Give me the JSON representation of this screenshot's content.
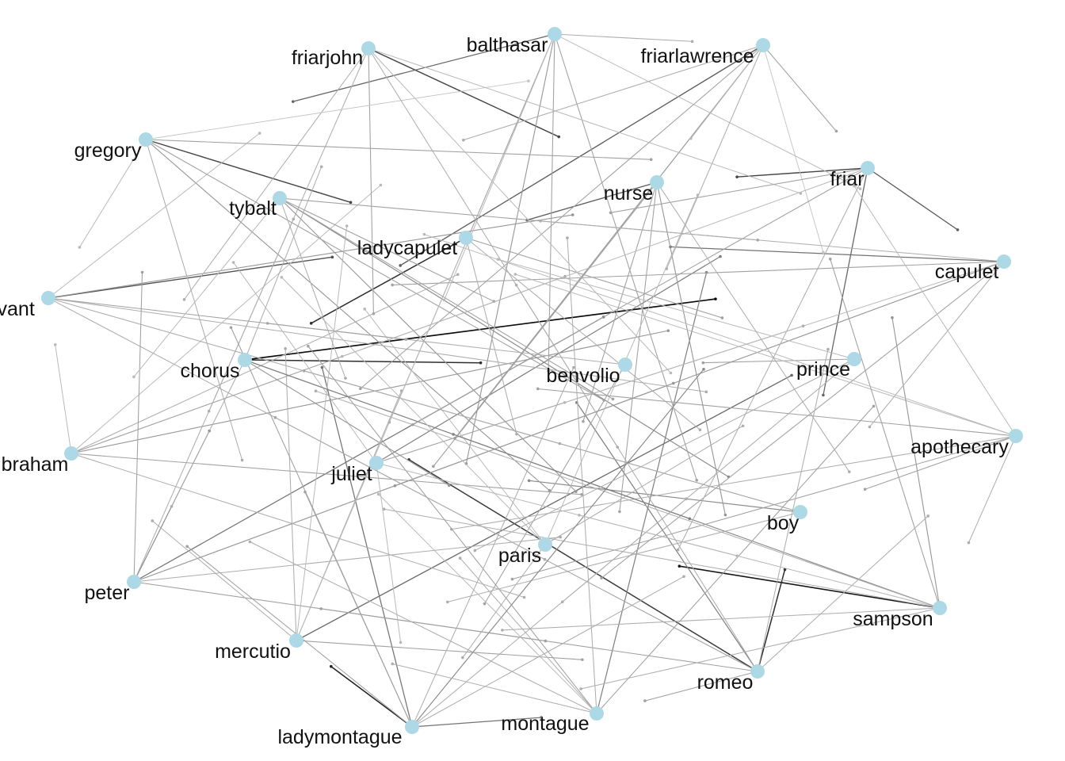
{
  "diagram": {
    "type": "network-graph",
    "directed": true,
    "node_color": "#add8e6",
    "label_color": "#111111",
    "edge_base_color": "#000000",
    "nodes": [
      {
        "id": "balthasar",
        "label": "balthasar"
      },
      {
        "id": "friarjohn",
        "label": "friarjohn"
      },
      {
        "id": "friarlawrence",
        "label": "friarlawrence"
      },
      {
        "id": "gregory",
        "label": "gregory"
      },
      {
        "id": "friar",
        "label": "friar"
      },
      {
        "id": "nurse",
        "label": "nurse"
      },
      {
        "id": "tybalt",
        "label": "tybalt"
      },
      {
        "id": "ladycapulet",
        "label": "ladycapulet"
      },
      {
        "id": "capulet",
        "label": "capulet"
      },
      {
        "id": "servant",
        "label": "rvant"
      },
      {
        "id": "chorus",
        "label": "chorus"
      },
      {
        "id": "benvolio",
        "label": "benvolio"
      },
      {
        "id": "prince",
        "label": "prince"
      },
      {
        "id": "apothecary",
        "label": "apothecary"
      },
      {
        "id": "abraham",
        "label": "braham"
      },
      {
        "id": "juliet",
        "label": "juliet"
      },
      {
        "id": "boy",
        "label": "boy"
      },
      {
        "id": "paris",
        "label": "paris"
      },
      {
        "id": "peter",
        "label": "peter"
      },
      {
        "id": "sampson",
        "label": "sampson"
      },
      {
        "id": "mercutio",
        "label": "mercutio"
      },
      {
        "id": "romeo",
        "label": "romeo"
      },
      {
        "id": "montague",
        "label": "montague"
      },
      {
        "id": "ladymontague",
        "label": "ladymontague"
      }
    ],
    "edges": [
      {
        "from": "chorus",
        "to": "capulet",
        "weight": 0.95
      },
      {
        "from": "sampson",
        "to": "paris",
        "weight": 0.9
      },
      {
        "from": "ladymontague",
        "to": "mercutio",
        "weight": 0.85
      },
      {
        "from": "romeo",
        "to": "boy",
        "weight": 0.8
      },
      {
        "from": "romeo",
        "to": "chorus",
        "weight": 0.75
      },
      {
        "from": "chorus",
        "to": "benvolio",
        "weight": 0.8
      },
      {
        "from": "friarjohn",
        "to": "nurse",
        "weight": 0.7
      },
      {
        "from": "ladycapulet",
        "to": "chorus",
        "weight": 0.8
      },
      {
        "from": "gregory",
        "to": "ladycapulet",
        "weight": 0.7
      },
      {
        "from": "servant",
        "to": "ladycapulet",
        "weight": 0.65
      },
      {
        "from": "friar",
        "to": "nurse",
        "weight": 0.7
      },
      {
        "from": "friar",
        "to": "capulet",
        "weight": 0.6
      },
      {
        "from": "friarlawrence",
        "to": "chorus",
        "weight": 0.6
      },
      {
        "from": "balthasar",
        "to": "gregory",
        "weight": 0.55
      },
      {
        "from": "nurse",
        "to": "ladycapulet",
        "weight": 0.6
      },
      {
        "from": "capulet",
        "to": "ladycapulet",
        "weight": 0.5
      },
      {
        "from": "friar",
        "to": "boy",
        "weight": 0.55
      },
      {
        "from": "mercutio",
        "to": "capulet",
        "weight": 0.55
      },
      {
        "from": "peter",
        "to": "friar",
        "weight": 0.5
      },
      {
        "from": "ladymontague",
        "to": "tybalt",
        "weight": 0.5
      },
      {
        "from": "romeo",
        "to": "ladycapulet",
        "weight": 0.45
      },
      {
        "from": "montague",
        "to": "friarlawrence",
        "weight": 0.45
      },
      {
        "from": "juliet",
        "to": "friar",
        "weight": 0.45
      },
      {
        "from": "abraham",
        "to": "capulet",
        "weight": 0.35
      },
      {
        "from": "peter",
        "to": "chorus",
        "weight": 0.4
      },
      {
        "from": "apothecary",
        "to": "chorus",
        "weight": 0.3
      },
      {
        "from": "prince",
        "to": "benvolio",
        "weight": 0.3
      },
      {
        "from": "sampson",
        "to": "chorus",
        "weight": 0.4
      },
      {
        "from": "boy",
        "to": "juliet",
        "weight": 0.4
      },
      {
        "from": "tybalt",
        "to": "sampson",
        "weight": 0.4
      },
      {
        "from": "tybalt",
        "to": "romeo",
        "weight": 0.35
      },
      {
        "from": "gregory",
        "to": "romeo",
        "weight": 0.35
      },
      {
        "from": "gregory",
        "to": "boy",
        "weight": 0.3
      },
      {
        "from": "servant",
        "to": "friar",
        "weight": 0.35
      },
      {
        "from": "servant",
        "to": "apothecary",
        "weight": 0.25
      },
      {
        "from": "balthasar",
        "to": "ladymontague",
        "weight": 0.35
      },
      {
        "from": "balthasar",
        "to": "paris",
        "weight": 0.3
      },
      {
        "from": "balthasar",
        "to": "romeo",
        "weight": 0.3
      },
      {
        "from": "friarjohn",
        "to": "juliet",
        "weight": 0.3
      },
      {
        "from": "friarjohn",
        "to": "peter",
        "weight": 0.25
      },
      {
        "from": "friarjohn",
        "to": "abraham",
        "weight": 0.25
      },
      {
        "from": "friarlawrence",
        "to": "mercutio",
        "weight": 0.35
      },
      {
        "from": "friarlawrence",
        "to": "friar",
        "weight": 0.3
      },
      {
        "from": "friarlawrence",
        "to": "peter",
        "weight": 0.3
      },
      {
        "from": "nurse",
        "to": "romeo",
        "weight": 0.35
      },
      {
        "from": "nurse",
        "to": "montague",
        "weight": 0.3
      },
      {
        "from": "nurse",
        "to": "paris",
        "weight": 0.3
      },
      {
        "from": "capulet",
        "to": "peter",
        "weight": 0.35
      },
      {
        "from": "capulet",
        "to": "servant",
        "weight": 0.3
      },
      {
        "from": "capulet",
        "to": "ladymontague",
        "weight": 0.3
      },
      {
        "from": "benvolio",
        "to": "servant",
        "weight": 0.25
      },
      {
        "from": "benvolio",
        "to": "ladymontague",
        "weight": 0.3
      },
      {
        "from": "apothecary",
        "to": "mercutio",
        "weight": 0.3
      },
      {
        "from": "apothecary",
        "to": "peter",
        "weight": 0.25
      },
      {
        "from": "apothecary",
        "to": "tybalt",
        "weight": 0.2
      },
      {
        "from": "abraham",
        "to": "friar",
        "weight": 0.3
      },
      {
        "from": "abraham",
        "to": "nurse",
        "weight": 0.25
      },
      {
        "from": "abraham",
        "to": "boy",
        "weight": 0.3
      },
      {
        "from": "abraham",
        "to": "balthasar",
        "weight": 0.2
      },
      {
        "from": "juliet",
        "to": "capulet",
        "weight": 0.3
      },
      {
        "from": "juliet",
        "to": "gregory",
        "weight": 0.2
      },
      {
        "from": "boy",
        "to": "servant",
        "weight": 0.3
      },
      {
        "from": "boy",
        "to": "mercutio",
        "weight": 0.25
      },
      {
        "from": "paris",
        "to": "prince",
        "weight": 0.25
      },
      {
        "from": "paris",
        "to": "tybalt",
        "weight": 0.2
      },
      {
        "from": "peter",
        "to": "capulet",
        "weight": 0.35
      },
      {
        "from": "peter",
        "to": "romeo",
        "weight": 0.3
      },
      {
        "from": "peter",
        "to": "gregory",
        "weight": 0.3
      },
      {
        "from": "peter",
        "to": "boy",
        "weight": 0.25
      },
      {
        "from": "peter",
        "to": "friarjohn",
        "weight": 0.25
      },
      {
        "from": "sampson",
        "to": "friarlawrence",
        "weight": 0.3
      },
      {
        "from": "sampson",
        "to": "friar",
        "weight": 0.35
      },
      {
        "from": "sampson",
        "to": "servant",
        "weight": 0.25
      },
      {
        "from": "sampson",
        "to": "abraham",
        "weight": 0.25
      },
      {
        "from": "sampson",
        "to": "mercutio",
        "weight": 0.25
      },
      {
        "from": "mercutio",
        "to": "romeo",
        "weight": 0.3
      },
      {
        "from": "mercutio",
        "to": "tybalt",
        "weight": 0.25
      },
      {
        "from": "mercutio",
        "to": "friarjohn",
        "weight": 0.2
      },
      {
        "from": "mercutio",
        "to": "abraham",
        "weight": 0.25
      },
      {
        "from": "romeo",
        "to": "servant",
        "weight": 0.3
      },
      {
        "from": "romeo",
        "to": "friarjohn",
        "weight": 0.25
      },
      {
        "from": "romeo",
        "to": "apothecary",
        "weight": 0.25
      },
      {
        "from": "romeo",
        "to": "peter",
        "weight": 0.3
      },
      {
        "from": "montague",
        "to": "gregory",
        "weight": 0.3
      },
      {
        "from": "montague",
        "to": "capulet",
        "weight": 0.3
      },
      {
        "from": "montague",
        "to": "juliet",
        "weight": 0.25
      },
      {
        "from": "montague",
        "to": "abraham",
        "weight": 0.25
      },
      {
        "from": "montague",
        "to": "balthasar",
        "weight": 0.25
      },
      {
        "from": "ladymontague",
        "to": "friar",
        "weight": 0.4
      },
      {
        "from": "ladymontague",
        "to": "gregory",
        "weight": 0.3
      },
      {
        "from": "ladymontague",
        "to": "prince",
        "weight": 0.25
      },
      {
        "from": "ladymontague",
        "to": "abraham",
        "weight": 0.3
      },
      {
        "from": "ladymontague",
        "to": "montague",
        "weight": 0.5
      },
      {
        "from": "ladymontague",
        "to": "chorus",
        "weight": 0.3
      },
      {
        "from": "servant",
        "to": "boy",
        "weight": 0.25
      },
      {
        "from": "servant",
        "to": "benvolio",
        "weight": 0.3
      },
      {
        "from": "servant",
        "to": "friarjohn",
        "weight": 0.2
      },
      {
        "from": "servant",
        "to": "romeo",
        "weight": 0.25
      },
      {
        "from": "chorus",
        "to": "sampson",
        "weight": 0.45
      },
      {
        "from": "chorus",
        "to": "paris",
        "weight": 0.35
      },
      {
        "from": "chorus",
        "to": "friarjohn",
        "weight": 0.25
      },
      {
        "from": "chorus",
        "to": "peter",
        "weight": 0.25
      },
      {
        "from": "gregory",
        "to": "friar",
        "weight": 0.3
      },
      {
        "from": "gregory",
        "to": "mercutio",
        "weight": 0.25
      },
      {
        "from": "gregory",
        "to": "servant",
        "weight": 0.2
      },
      {
        "from": "gregory",
        "to": "friarlawrence",
        "weight": 0.15
      },
      {
        "from": "tybalt",
        "to": "capulet",
        "weight": 0.3
      },
      {
        "from": "tybalt",
        "to": "abraham",
        "weight": 0.2
      },
      {
        "from": "tybalt",
        "to": "boy",
        "weight": 0.3
      },
      {
        "from": "tybalt",
        "to": "juliet",
        "weight": 0.25
      },
      {
        "from": "tybalt",
        "to": "benvolio",
        "weight": 0.3
      },
      {
        "from": "ladycapulet",
        "to": "prince",
        "weight": 0.3
      },
      {
        "from": "ladycapulet",
        "to": "boy",
        "weight": 0.25
      },
      {
        "from": "ladycapulet",
        "to": "paris",
        "weight": 0.25
      },
      {
        "from": "friarlawrence",
        "to": "nurse",
        "weight": 0.2
      },
      {
        "from": "friarlawrence",
        "to": "tybalt",
        "weight": 0.25
      },
      {
        "from": "friarlawrence",
        "to": "prince",
        "weight": 0.15
      },
      {
        "from": "friarlawrence",
        "to": "benvolio",
        "weight": 0.25
      },
      {
        "from": "balthasar",
        "to": "mercutio",
        "weight": 0.3
      },
      {
        "from": "balthasar",
        "to": "capulet",
        "weight": 0.2
      },
      {
        "from": "balthasar",
        "to": "juliet",
        "weight": 0.2
      },
      {
        "from": "balthasar",
        "to": "friarlawrence",
        "weight": 0.25
      },
      {
        "from": "friarjohn",
        "to": "boy",
        "weight": 0.2
      },
      {
        "from": "friarjohn",
        "to": "romeo",
        "weight": 0.25
      },
      {
        "from": "friarjohn",
        "to": "capulet",
        "weight": 0.2
      },
      {
        "from": "friar",
        "to": "peter",
        "weight": 0.3
      },
      {
        "from": "friar",
        "to": "abraham",
        "weight": 0.2
      },
      {
        "from": "friar",
        "to": "montague",
        "weight": 0.25
      },
      {
        "from": "friar",
        "to": "ladycapulet",
        "weight": 0.3
      },
      {
        "from": "nurse",
        "to": "sampson",
        "weight": 0.25
      },
      {
        "from": "nurse",
        "to": "mercutio",
        "weight": 0.3
      },
      {
        "from": "capulet",
        "to": "boy",
        "weight": 0.25
      },
      {
        "from": "capulet",
        "to": "juliet",
        "weight": 0.2
      },
      {
        "from": "capulet",
        "to": "tybalt",
        "weight": 0.25
      },
      {
        "from": "prince",
        "to": "mercutio",
        "weight": 0.25
      },
      {
        "from": "prince",
        "to": "tybalt",
        "weight": 0.2
      },
      {
        "from": "prince",
        "to": "ladymontague",
        "weight": 0.25
      },
      {
        "from": "apothecary",
        "to": "boy",
        "weight": 0.3
      },
      {
        "from": "apothecary",
        "to": "friarlawrence",
        "weight": 0.2
      },
      {
        "from": "apothecary",
        "to": "gregory",
        "weight": 0.2
      },
      {
        "from": "apothecary",
        "to": "sampson",
        "weight": 0.25
      },
      {
        "from": "abraham",
        "to": "romeo",
        "weight": 0.25
      },
      {
        "from": "abraham",
        "to": "servant",
        "weight": 0.2
      },
      {
        "from": "juliet",
        "to": "sampson",
        "weight": 0.2
      },
      {
        "from": "juliet",
        "to": "ladymontague",
        "weight": 0.2
      },
      {
        "from": "paris",
        "to": "ladymontague",
        "weight": 0.25
      },
      {
        "from": "paris",
        "to": "gregory",
        "weight": 0.2
      },
      {
        "from": "paris",
        "to": "friarlawrence",
        "weight": 0.2
      },
      {
        "from": "sampson",
        "to": "juliet",
        "weight": 0.2
      },
      {
        "from": "sampson",
        "to": "ladymontague",
        "weight": 0.25
      },
      {
        "from": "mercutio",
        "to": "ladycapulet",
        "weight": 0.25
      },
      {
        "from": "mercutio",
        "to": "balthasar",
        "weight": 0.2
      },
      {
        "from": "romeo",
        "to": "montague",
        "weight": 0.3
      },
      {
        "from": "romeo",
        "to": "friar",
        "weight": 0.25
      },
      {
        "from": "montague",
        "to": "mercutio",
        "weight": 0.25
      },
      {
        "from": "montague",
        "to": "chorus",
        "weight": 0.2
      },
      {
        "from": "ladymontague",
        "to": "nurse",
        "weight": 0.25
      },
      {
        "from": "ladymontague",
        "to": "boy",
        "weight": 0.25
      }
    ]
  }
}
